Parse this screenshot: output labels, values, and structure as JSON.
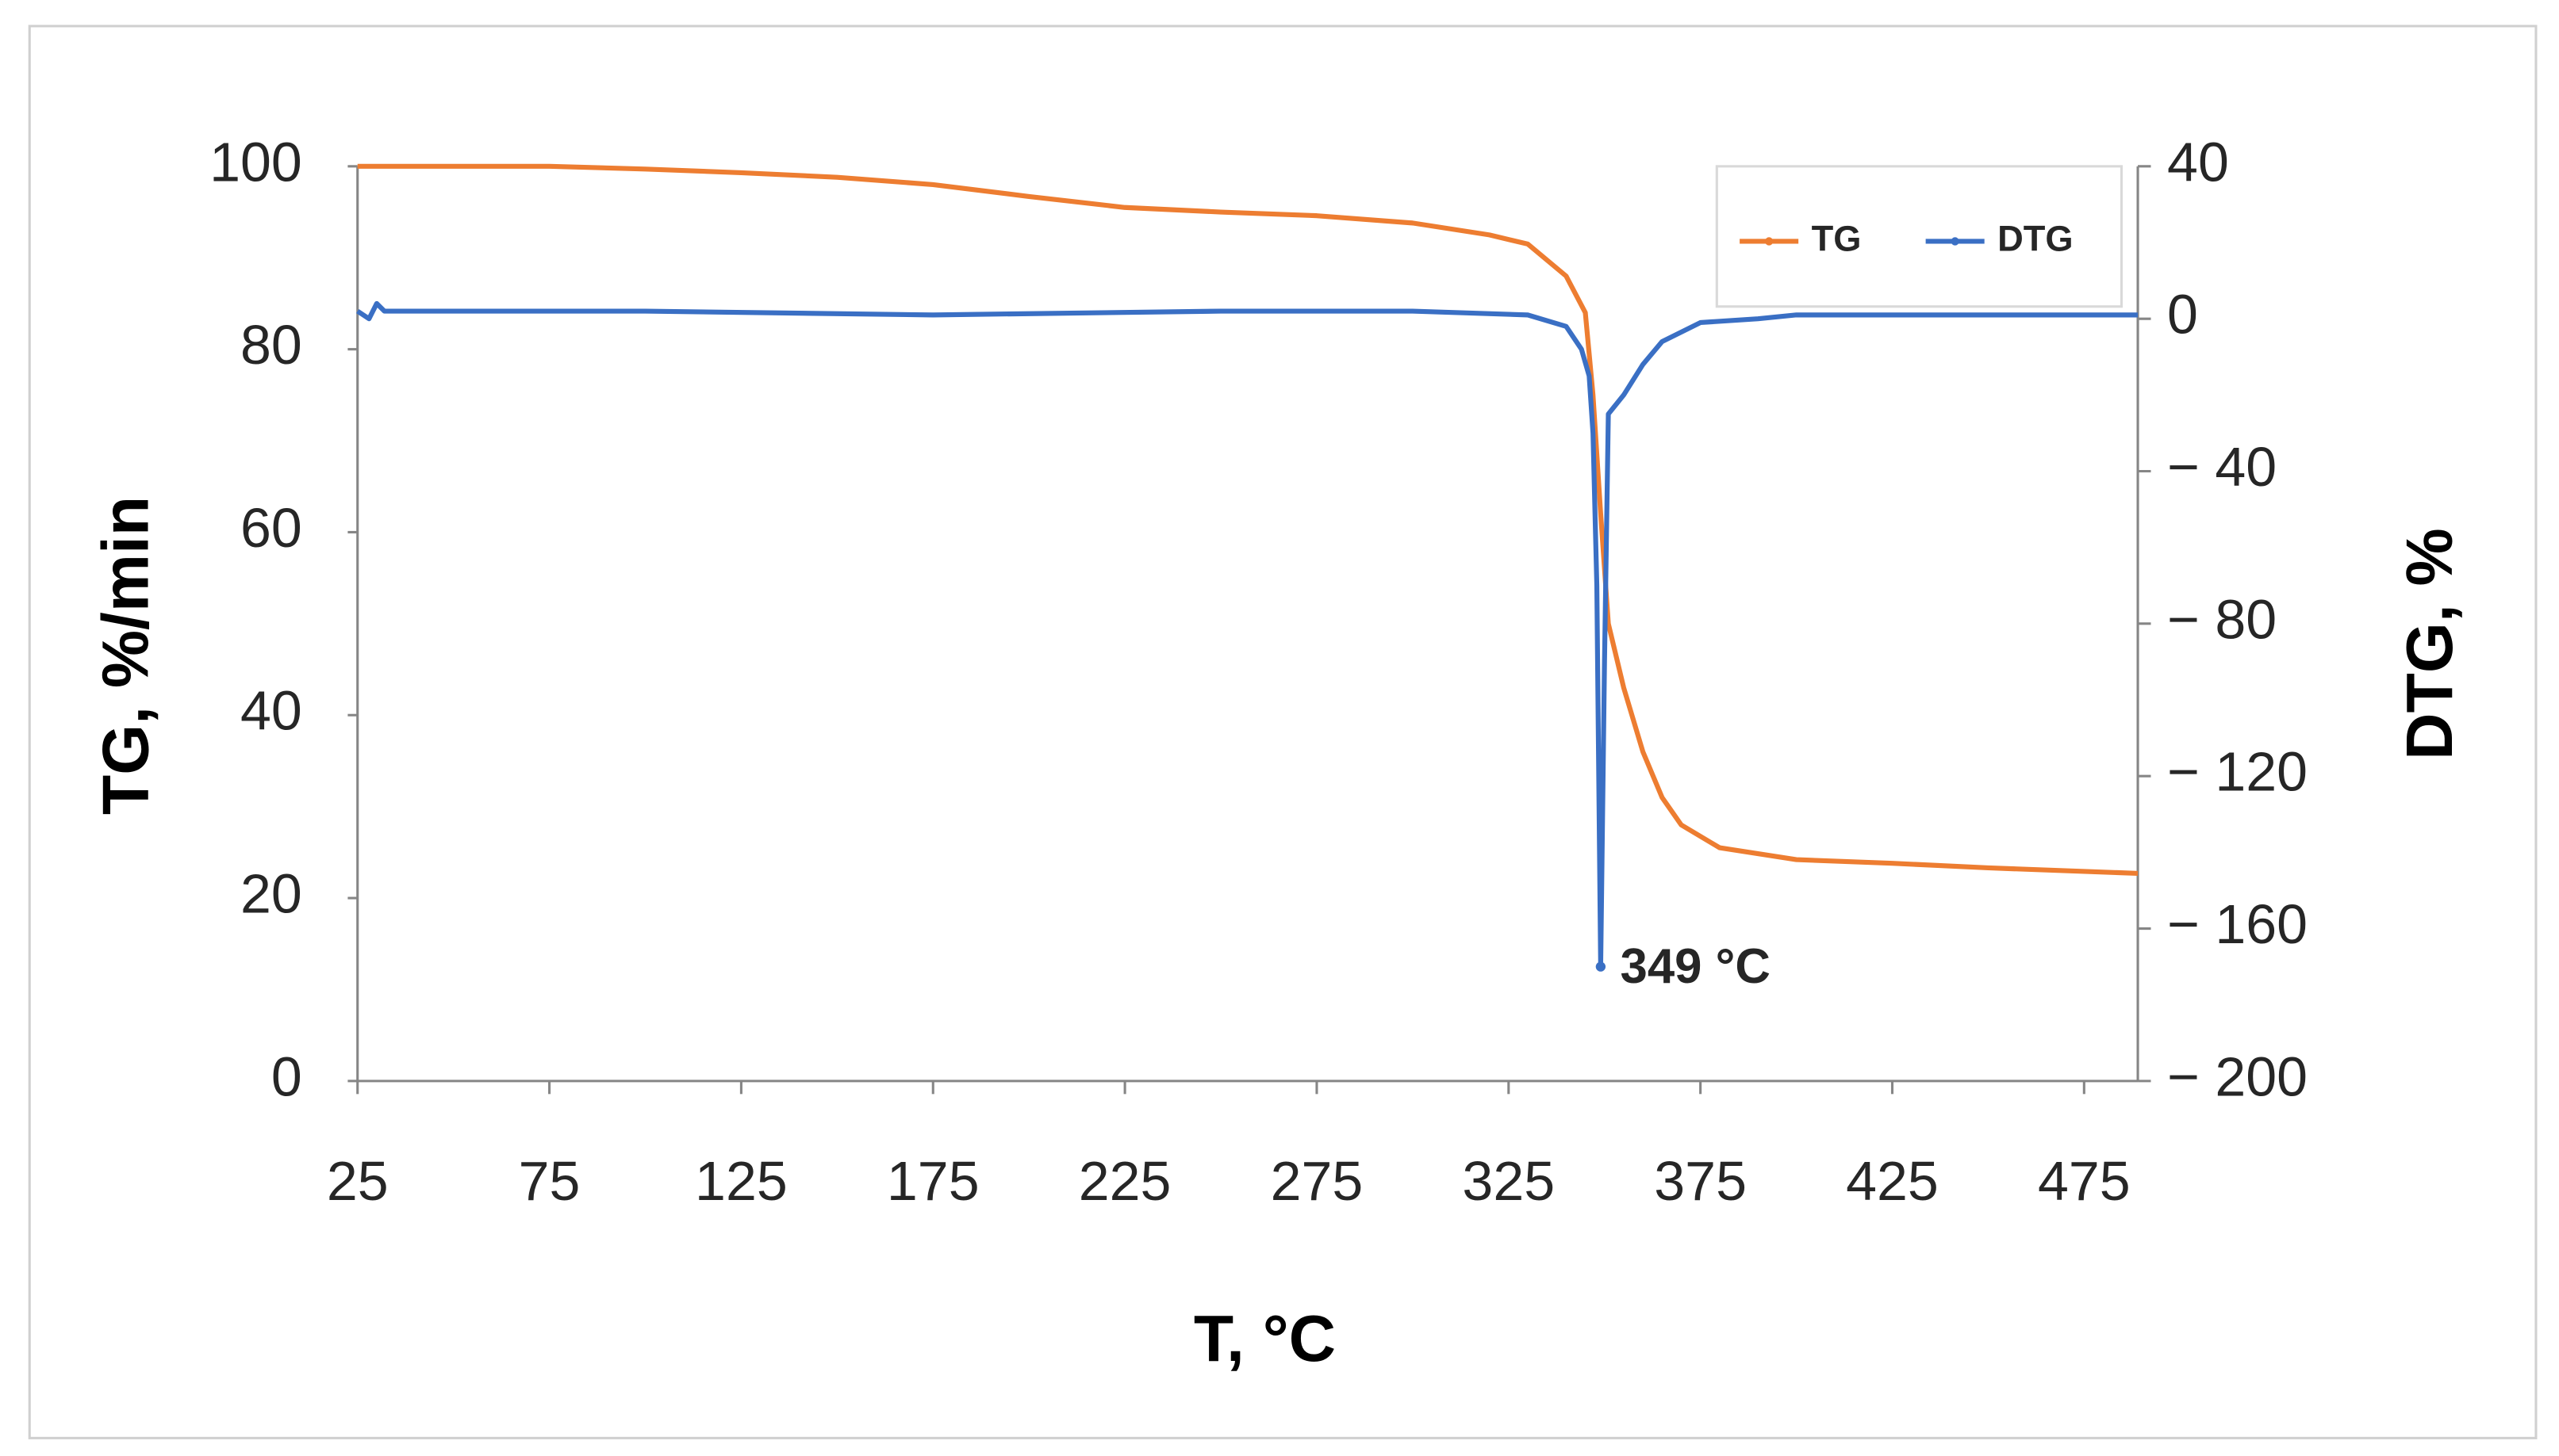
{
  "chart_data": {
    "type": "line",
    "x_label": "T, °C",
    "y_label": "TG, %/min",
    "y2_label": "DTG, %",
    "annotation": "349 °C",
    "xlim": [
      25,
      489
    ],
    "xticks": [
      25,
      75,
      125,
      175,
      225,
      275,
      325,
      375,
      425,
      475
    ],
    "ylim": [
      0,
      100
    ],
    "yticks": [
      0,
      20,
      40,
      60,
      80,
      100
    ],
    "y2lim": [
      -200,
      40
    ],
    "y2ticks": [
      {
        "value": -200,
        "label": "− 200"
      },
      {
        "value": -160,
        "label": "− 160"
      },
      {
        "value": -120,
        "label": "− 120"
      },
      {
        "value": -80,
        "label": "− 80"
      },
      {
        "value": -40,
        "label": "− 40"
      },
      0,
      40
    ],
    "legend": "upper right",
    "series": [
      {
        "name": "TG",
        "color": "#ed7d31",
        "x": [
          25,
          50,
          75,
          100,
          125,
          150,
          175,
          200,
          225,
          250,
          275,
          300,
          320,
          330,
          340,
          345,
          347,
          349,
          351,
          355,
          360,
          365,
          370,
          380,
          400,
          425,
          450,
          489
        ],
        "values": [
          100,
          100,
          100,
          99.7,
          99.3,
          98.8,
          98,
          96.7,
          95.5,
          95,
          94.6,
          93.8,
          92.5,
          91.5,
          88,
          84,
          75,
          62,
          50,
          43,
          36,
          31,
          28,
          25.5,
          24.2,
          23.8,
          23.3,
          22.7
        ]
      },
      {
        "name": "DTG",
        "color": "#3a6fc4",
        "axis": "y2",
        "x": [
          25,
          28,
          30,
          32,
          50,
          100,
          175,
          250,
          300,
          330,
          340,
          344,
          346,
          347,
          348,
          349,
          350,
          351,
          355,
          360,
          365,
          375,
          390,
          400,
          489
        ],
        "values": [
          2,
          0,
          4,
          2,
          2,
          2,
          1,
          2,
          2,
          1,
          -2,
          -8,
          -15,
          -30,
          -70,
          -170,
          -90,
          -25,
          -20,
          -12,
          -6,
          -1,
          0,
          1,
          1
        ]
      }
    ]
  }
}
